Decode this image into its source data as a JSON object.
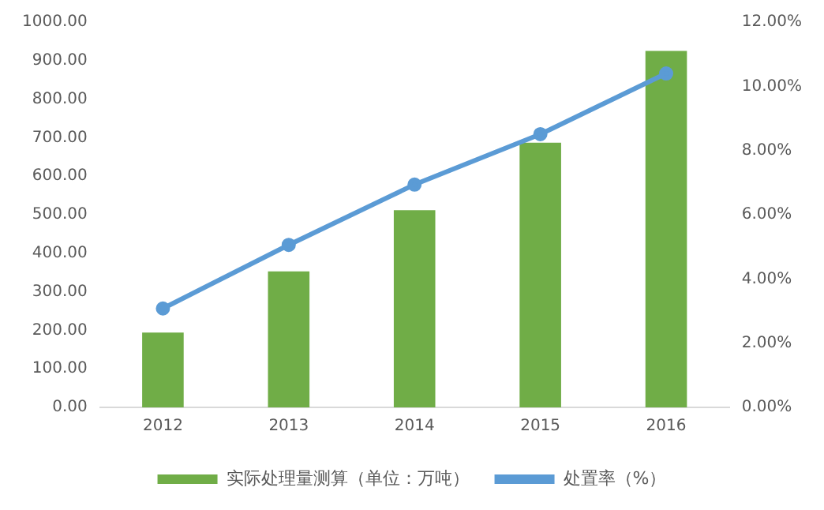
{
  "chart_data": {
    "type": "bar",
    "categories": [
      "2012",
      "2013",
      "2014",
      "2015",
      "2016"
    ],
    "series": [
      {
        "name": "实际处理量测算（单位：万吨）",
        "color": "#70ad47",
        "values": [
          194,
          353,
          512,
          687,
          925
        ]
      },
      {
        "name": "处置率（%）",
        "type": "line",
        "axis": "y2",
        "color": "#5b9bd5",
        "values": [
          3.08,
          5.06,
          6.94,
          8.51,
          10.4
        ]
      }
    ],
    "ylim": [
      0,
      1000
    ],
    "yticks": [
      {
        "value": 0,
        "label": "0.00"
      },
      {
        "value": 100,
        "label": "100.00"
      },
      {
        "value": 200,
        "label": "200.00"
      },
      {
        "value": 300,
        "label": "300.00"
      },
      {
        "value": 400,
        "label": "400.00"
      },
      {
        "value": 500,
        "label": "500.00"
      },
      {
        "value": 600,
        "label": "600.00"
      },
      {
        "value": 700,
        "label": "700.00"
      },
      {
        "value": 800,
        "label": "800.00"
      },
      {
        "value": 900,
        "label": "900.00"
      },
      {
        "value": 1000,
        "label": "1000.00"
      }
    ],
    "y2lim": [
      0,
      12
    ],
    "y2ticks": [
      {
        "value": 0,
        "label": "0.00%"
      },
      {
        "value": 2,
        "label": "2.00%"
      },
      {
        "value": 4,
        "label": "4.00%"
      },
      {
        "value": 6,
        "label": "6.00%"
      },
      {
        "value": 8,
        "label": "8.00%"
      },
      {
        "value": 10,
        "label": "10.00%"
      },
      {
        "value": 12,
        "label": "12.00%"
      }
    ],
    "grid": false,
    "legend": "bottom",
    "marker": "circle"
  }
}
